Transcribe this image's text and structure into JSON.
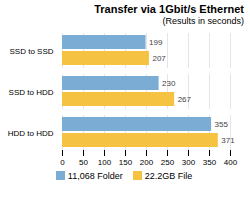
{
  "chart_data": {
    "type": "bar",
    "orientation": "horizontal",
    "title": "Transfer via 1Gbit/s Ethernet",
    "subtitle": "(Results in seconds)",
    "categories": [
      "HDD to HDD",
      "SSD to HDD",
      "SSD to SSD"
    ],
    "series": [
      {
        "name": "11,068 Folder",
        "color": "#7badd4",
        "values": [
          355,
          230,
          199
        ]
      },
      {
        "name": "22.2GB File",
        "color": "#f5c242",
        "values": [
          371,
          267,
          207
        ]
      }
    ],
    "xlim": [
      0,
      400
    ],
    "xticks": [
      0,
      50,
      100,
      150,
      200,
      250,
      300,
      350,
      400
    ],
    "grid": true,
    "data_labels": true,
    "legend": "bottom"
  }
}
